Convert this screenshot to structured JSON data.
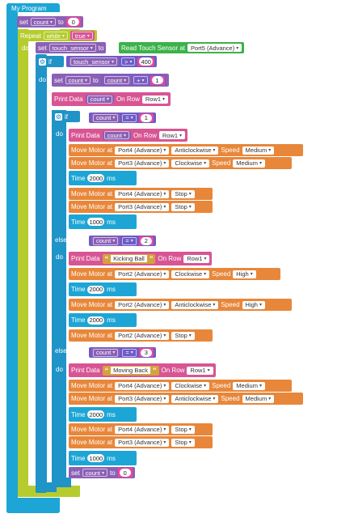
{
  "program": {
    "title": "My Program",
    "set_count_init": {
      "set": "set",
      "var": "count",
      "to": "to",
      "value": "0"
    },
    "repeat": {
      "label": "Repeat",
      "mode": "while",
      "cond": "true",
      "do": "do"
    },
    "read_sensor": {
      "set": "set",
      "var": "touch_sensor",
      "to": "to",
      "label": "Read Touch Sensor at",
      "port": "Port5 (Advance)"
    },
    "if_main": {
      "if": "if",
      "do": "do",
      "var": "touch_sensor",
      "op": ">",
      "value": "400"
    },
    "increment": {
      "set": "set",
      "var": "count",
      "to": "to",
      "lhs": "count",
      "op": "+",
      "rhs": "1"
    },
    "print_count_1": {
      "label": "Print Data",
      "var": "count",
      "on_row": "On Row",
      "row": "Row1"
    },
    "if_inner": {
      "if": "if",
      "do": "do",
      "else_if": "else if",
      "var": "count",
      "op": "="
    },
    "branch1": {
      "cond_value": "1",
      "print": {
        "label": "Print Data",
        "var": "count",
        "on_row": "On Row",
        "row": "Row1"
      },
      "motors": [
        {
          "label": "Move Motor at",
          "port": "Port4 (Advance)",
          "dir": "Anticlockwise",
          "speed_label": "Speed",
          "speed": "Medium"
        },
        {
          "label": "Move Motor at",
          "port": "Port3 (Advance)",
          "dir": "Clockwise",
          "speed_label": "Speed",
          "speed": "Medium"
        }
      ],
      "time1": {
        "label": "Time",
        "value": "2000",
        "unit": "ms"
      },
      "stops": [
        {
          "label": "Move Motor at",
          "port": "Port4 (Advance)",
          "dir": "Stop"
        },
        {
          "label": "Move Motor at",
          "port": "Port3 (Advance)",
          "dir": "Stop"
        }
      ],
      "time2": {
        "label": "Time",
        "value": "1000",
        "unit": "ms"
      }
    },
    "branch2": {
      "cond_value": "2",
      "print": {
        "label": "Print Data",
        "text": "Kicking Ball",
        "on_row": "On Row",
        "row": "Row1"
      },
      "motor_a": {
        "label": "Move Motor at",
        "port": "Port2 (Advance)",
        "dir": "Clockwise",
        "speed_label": "Speed",
        "speed": "High"
      },
      "time1": {
        "label": "Time",
        "value": "2000",
        "unit": "ms"
      },
      "motor_b": {
        "label": "Move Motor at",
        "port": "Port2 (Advance)",
        "dir": "Anticlockwise",
        "speed_label": "Speed",
        "speed": "High"
      },
      "time2": {
        "label": "Time",
        "value": "2000",
        "unit": "ms"
      },
      "stop": {
        "label": "Move Motor at",
        "port": "Port2 (Advance)",
        "dir": "Stop"
      }
    },
    "branch3": {
      "cond_value": "3",
      "print": {
        "label": "Print Data",
        "text": "Moving Back",
        "on_row": "On Row",
        "row": "Row1"
      },
      "motors": [
        {
          "label": "Move Motor at",
          "port": "Port4 (Advance)",
          "dir": "Clockwise",
          "speed_label": "Speed",
          "speed": "Medium"
        },
        {
          "label": "Move Motor at",
          "port": "Port3 (Advance)",
          "dir": "Anticlockwise",
          "speed_label": "Speed",
          "speed": "Medium"
        }
      ],
      "time1": {
        "label": "Time",
        "value": "2000",
        "unit": "ms"
      },
      "stops": [
        {
          "label": "Move Motor at",
          "port": "Port4 (Advance)",
          "dir": "Stop"
        },
        {
          "label": "Move Motor at",
          "port": "Port3 (Advance)",
          "dir": "Stop"
        }
      ],
      "time2": {
        "label": "Time",
        "value": "1000",
        "unit": "ms"
      },
      "reset": {
        "set": "set",
        "var": "count",
        "to": "to",
        "value": "0"
      }
    }
  }
}
